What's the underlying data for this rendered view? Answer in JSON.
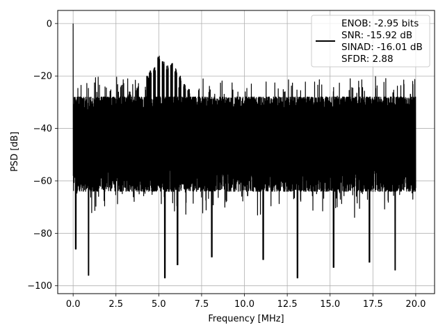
{
  "chart_data": {
    "type": "line",
    "xlabel": "Frequency [MHz]",
    "ylabel": "PSD [dB]",
    "xlim": [
      -0.9,
      21.1
    ],
    "ylim": [
      -103,
      5
    ],
    "xticks": [
      0.0,
      2.5,
      5.0,
      7.5,
      10.0,
      12.5,
      15.0,
      17.5,
      20.0
    ],
    "xtick_labels": [
      "0.0",
      "2.5",
      "5.0",
      "7.5",
      "10.0",
      "12.5",
      "15.0",
      "17.5",
      "20.0"
    ],
    "yticks": [
      0,
      -20,
      -40,
      -60,
      -80,
      -100
    ],
    "ytick_labels": [
      "0",
      "−20",
      "−40",
      "−60",
      "−80",
      "−100"
    ],
    "grid": true,
    "legend_position": "top-right",
    "series": [
      {
        "name": "ENOB: -2.95 bits\nSNR: -15.92 dB\nSINAD: -16.01 dB\nSFDR: 2.88",
        "color": "#000000",
        "legend_lines": [
          "ENOB: -2.95 bits",
          "SNR: -15.92 dB",
          "SINAD: -16.01 dB",
          "SFDR: 2.88"
        ],
        "x_range": [
          0.0,
          20.0
        ],
        "noise_floor_db": [
          -68,
          -28
        ],
        "peak": {
          "x": 0.0,
          "y": 0.0
        },
        "spurs": [
          {
            "x": 3.3,
            "y": -26
          },
          {
            "x": 3.75,
            "y": -24
          },
          {
            "x": 4.35,
            "y": -20
          },
          {
            "x": 4.5,
            "y": -18
          },
          {
            "x": 4.75,
            "y": -16
          },
          {
            "x": 5.0,
            "y": -12
          },
          {
            "x": 5.25,
            "y": -14
          },
          {
            "x": 5.5,
            "y": -16
          },
          {
            "x": 5.75,
            "y": -15
          },
          {
            "x": 6.0,
            "y": -17
          },
          {
            "x": 6.25,
            "y": -20
          },
          {
            "x": 6.5,
            "y": -23
          },
          {
            "x": 6.75,
            "y": -25
          }
        ],
        "dips": [
          {
            "x": 0.9,
            "y": -96
          },
          {
            "x": 5.35,
            "y": -97
          },
          {
            "x": 13.1,
            "y": -97
          },
          {
            "x": 15.2,
            "y": -93
          },
          {
            "x": 18.8,
            "y": -94
          },
          {
            "x": 6.1,
            "y": -92
          },
          {
            "x": 11.1,
            "y": -90
          },
          {
            "x": 0.15,
            "y": -86
          },
          {
            "x": 17.3,
            "y": -91
          },
          {
            "x": 8.1,
            "y": -89
          }
        ]
      }
    ]
  }
}
